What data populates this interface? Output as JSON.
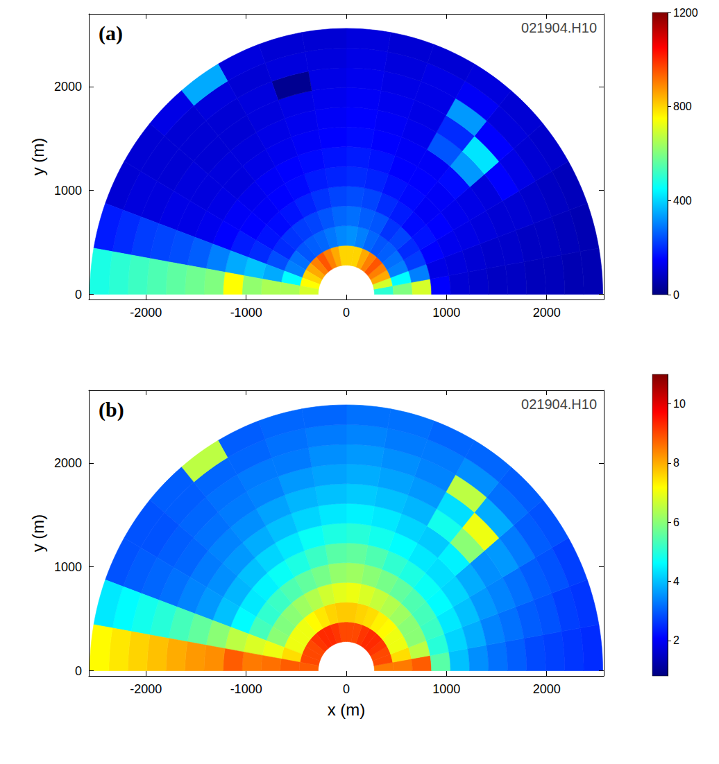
{
  "chart_data": [
    {
      "type": "heatmap",
      "title": "(a)",
      "annotations": [
        "021904.H10"
      ],
      "ylabel": "y (m)",
      "xlim": [
        -2570,
        2570
      ],
      "xticks": [
        -2000,
        -1000,
        0,
        1000,
        2000
      ],
      "ylim": [
        -50,
        2700
      ],
      "yticks": [
        0,
        1000,
        2000
      ],
      "grid": false,
      "r_edges": [
        280,
        470,
        660,
        850,
        1040,
        1230,
        1420,
        1610,
        1800,
        1990,
        2180,
        2370,
        2560
      ],
      "angle_edges": [
        0,
        10,
        20,
        30,
        40,
        50,
        60,
        70,
        80,
        90,
        100,
        110,
        120,
        130,
        140,
        150,
        160,
        170,
        180
      ],
      "values": [
        [
          500,
          700,
          850,
          900,
          950,
          900,
          850,
          800,
          800,
          800,
          850,
          900,
          950,
          900,
          850,
          800,
          750,
          700
        ],
        [
          600,
          450,
          300,
          280,
          260,
          250,
          270,
          300,
          320,
          310,
          290,
          270,
          260,
          250,
          280,
          300,
          450,
          650
        ],
        [
          700,
          300,
          220,
          200,
          230,
          210,
          250,
          260,
          280,
          270,
          250,
          230,
          220,
          210,
          200,
          240,
          350,
          650
        ],
        [
          150,
          120,
          150,
          170,
          160,
          180,
          200,
          230,
          240,
          230,
          210,
          190,
          170,
          160,
          170,
          200,
          380,
          620
        ],
        [
          100,
          110,
          130,
          150,
          140,
          160,
          170,
          190,
          200,
          190,
          180,
          160,
          150,
          140,
          150,
          180,
          350,
          750
        ],
        [
          90,
          100,
          120,
          130,
          140,
          150,
          150,
          170,
          180,
          170,
          160,
          150,
          140,
          130,
          140,
          150,
          300,
          600
        ],
        [
          80,
          90,
          110,
          120,
          160,
          140,
          140,
          150,
          160,
          150,
          140,
          130,
          120,
          110,
          120,
          130,
          260,
          580
        ],
        [
          80,
          90,
          100,
          110,
          330,
          250,
          130,
          140,
          150,
          140,
          130,
          120,
          110,
          110,
          110,
          120,
          240,
          560
        ],
        [
          70,
          80,
          100,
          150,
          420,
          200,
          120,
          130,
          140,
          130,
          120,
          110,
          100,
          100,
          110,
          120,
          230,
          540
        ],
        [
          70,
          80,
          90,
          120,
          150,
          330,
          120,
          120,
          130,
          120,
          20,
          110,
          100,
          100,
          100,
          110,
          220,
          520
        ],
        [
          60,
          70,
          80,
          100,
          110,
          140,
          120,
          110,
          120,
          110,
          110,
          100,
          110,
          100,
          100,
          110,
          200,
          500
        ],
        [
          60,
          60,
          70,
          90,
          100,
          110,
          100,
          100,
          110,
          100,
          100,
          110,
          350,
          120,
          100,
          100,
          180,
          480
        ]
      ],
      "colorbar": {
        "range": [
          0,
          1200
        ],
        "ticks": [
          0,
          400,
          800,
          1200
        ]
      }
    },
    {
      "type": "heatmap",
      "title": "(b)",
      "annotations": [
        "021904.H10"
      ],
      "xlabel": "x (m)",
      "ylabel": "y (m)",
      "xlim": [
        -2570,
        2570
      ],
      "xticks": [
        -2000,
        -1000,
        0,
        1000,
        2000
      ],
      "ylim": [
        -50,
        2700
      ],
      "yticks": [
        0,
        1000,
        2000
      ],
      "grid": false,
      "r_edges": [
        280,
        470,
        660,
        850,
        1040,
        1230,
        1420,
        1610,
        1800,
        1990,
        2180,
        2370,
        2560
      ],
      "angle_edges": [
        0,
        10,
        20,
        30,
        40,
        50,
        60,
        70,
        80,
        90,
        100,
        110,
        120,
        130,
        140,
        150,
        160,
        170,
        180
      ],
      "values": [
        [
          8.5,
          9,
          9,
          9.2,
          9.3,
          9.3,
          9.2,
          9,
          9,
          9,
          9.2,
          9.3,
          9.3,
          9.2,
          9,
          9,
          9,
          8.8
        ],
        [
          8.5,
          7.5,
          7,
          7,
          7.2,
          7.3,
          7.5,
          7.6,
          7.7,
          7.7,
          7.6,
          7.4,
          7.2,
          7,
          7,
          7,
          7.5,
          8.8
        ],
        [
          8.8,
          6.5,
          6,
          6,
          6.2,
          6.4,
          6.6,
          6.8,
          7,
          6.9,
          6.7,
          6.4,
          6.2,
          6,
          5.9,
          6,
          7,
          8.6
        ],
        [
          5.5,
          5,
          5.2,
          5.3,
          5.4,
          5.6,
          5.8,
          6,
          6.2,
          6.1,
          5.8,
          5.6,
          5.4,
          5.2,
          5.1,
          5.3,
          6.8,
          8.5
        ],
        [
          4,
          4.2,
          4.4,
          4.6,
          4.7,
          4.9,
          5.1,
          5.4,
          5.6,
          5.5,
          5.2,
          4.9,
          4.7,
          4.5,
          4.4,
          4.6,
          6.5,
          8.8
        ],
        [
          3.5,
          3.8,
          4,
          4.2,
          4.3,
          4.4,
          4.6,
          4.8,
          5,
          4.9,
          4.7,
          4.4,
          4.2,
          4,
          3.9,
          4,
          6,
          8.3
        ],
        [
          3.2,
          3.4,
          3.6,
          3.8,
          4.5,
          4.1,
          4.2,
          4.4,
          4.5,
          4.4,
          4.2,
          4,
          3.8,
          3.6,
          3.5,
          3.6,
          5.6,
          8.2
        ],
        [
          3,
          3.2,
          3.4,
          3.5,
          6,
          4.8,
          3.9,
          4,
          4.1,
          4,
          3.9,
          3.7,
          3.5,
          3.4,
          3.3,
          3.4,
          5.3,
          8
        ],
        [
          2.8,
          3,
          3.2,
          3.6,
          7,
          4.3,
          3.6,
          3.7,
          3.8,
          3.7,
          3.6,
          3.4,
          3.3,
          3.2,
          3.1,
          3.2,
          5,
          7.8
        ],
        [
          2.7,
          2.9,
          3,
          3.3,
          3.8,
          6.5,
          3.4,
          3.5,
          3.6,
          3.5,
          3.3,
          3.3,
          3.2,
          3.1,
          3,
          3.1,
          4.8,
          7.6
        ],
        [
          2.6,
          2.7,
          2.9,
          3,
          3.2,
          3.5,
          3.3,
          3.3,
          3.4,
          3.3,
          3.2,
          3.1,
          3.1,
          3,
          2.9,
          3,
          4.6,
          7.4
        ],
        [
          2.5,
          2.6,
          2.7,
          2.9,
          3,
          3.1,
          3.1,
          3.2,
          3.2,
          3.1,
          3.1,
          3,
          6.5,
          3,
          2.9,
          2.9,
          4.4,
          7.2
        ]
      ],
      "colorbar": {
        "range": [
          0.8,
          11
        ],
        "ticks": [
          2,
          4,
          6,
          8,
          10
        ]
      }
    }
  ]
}
